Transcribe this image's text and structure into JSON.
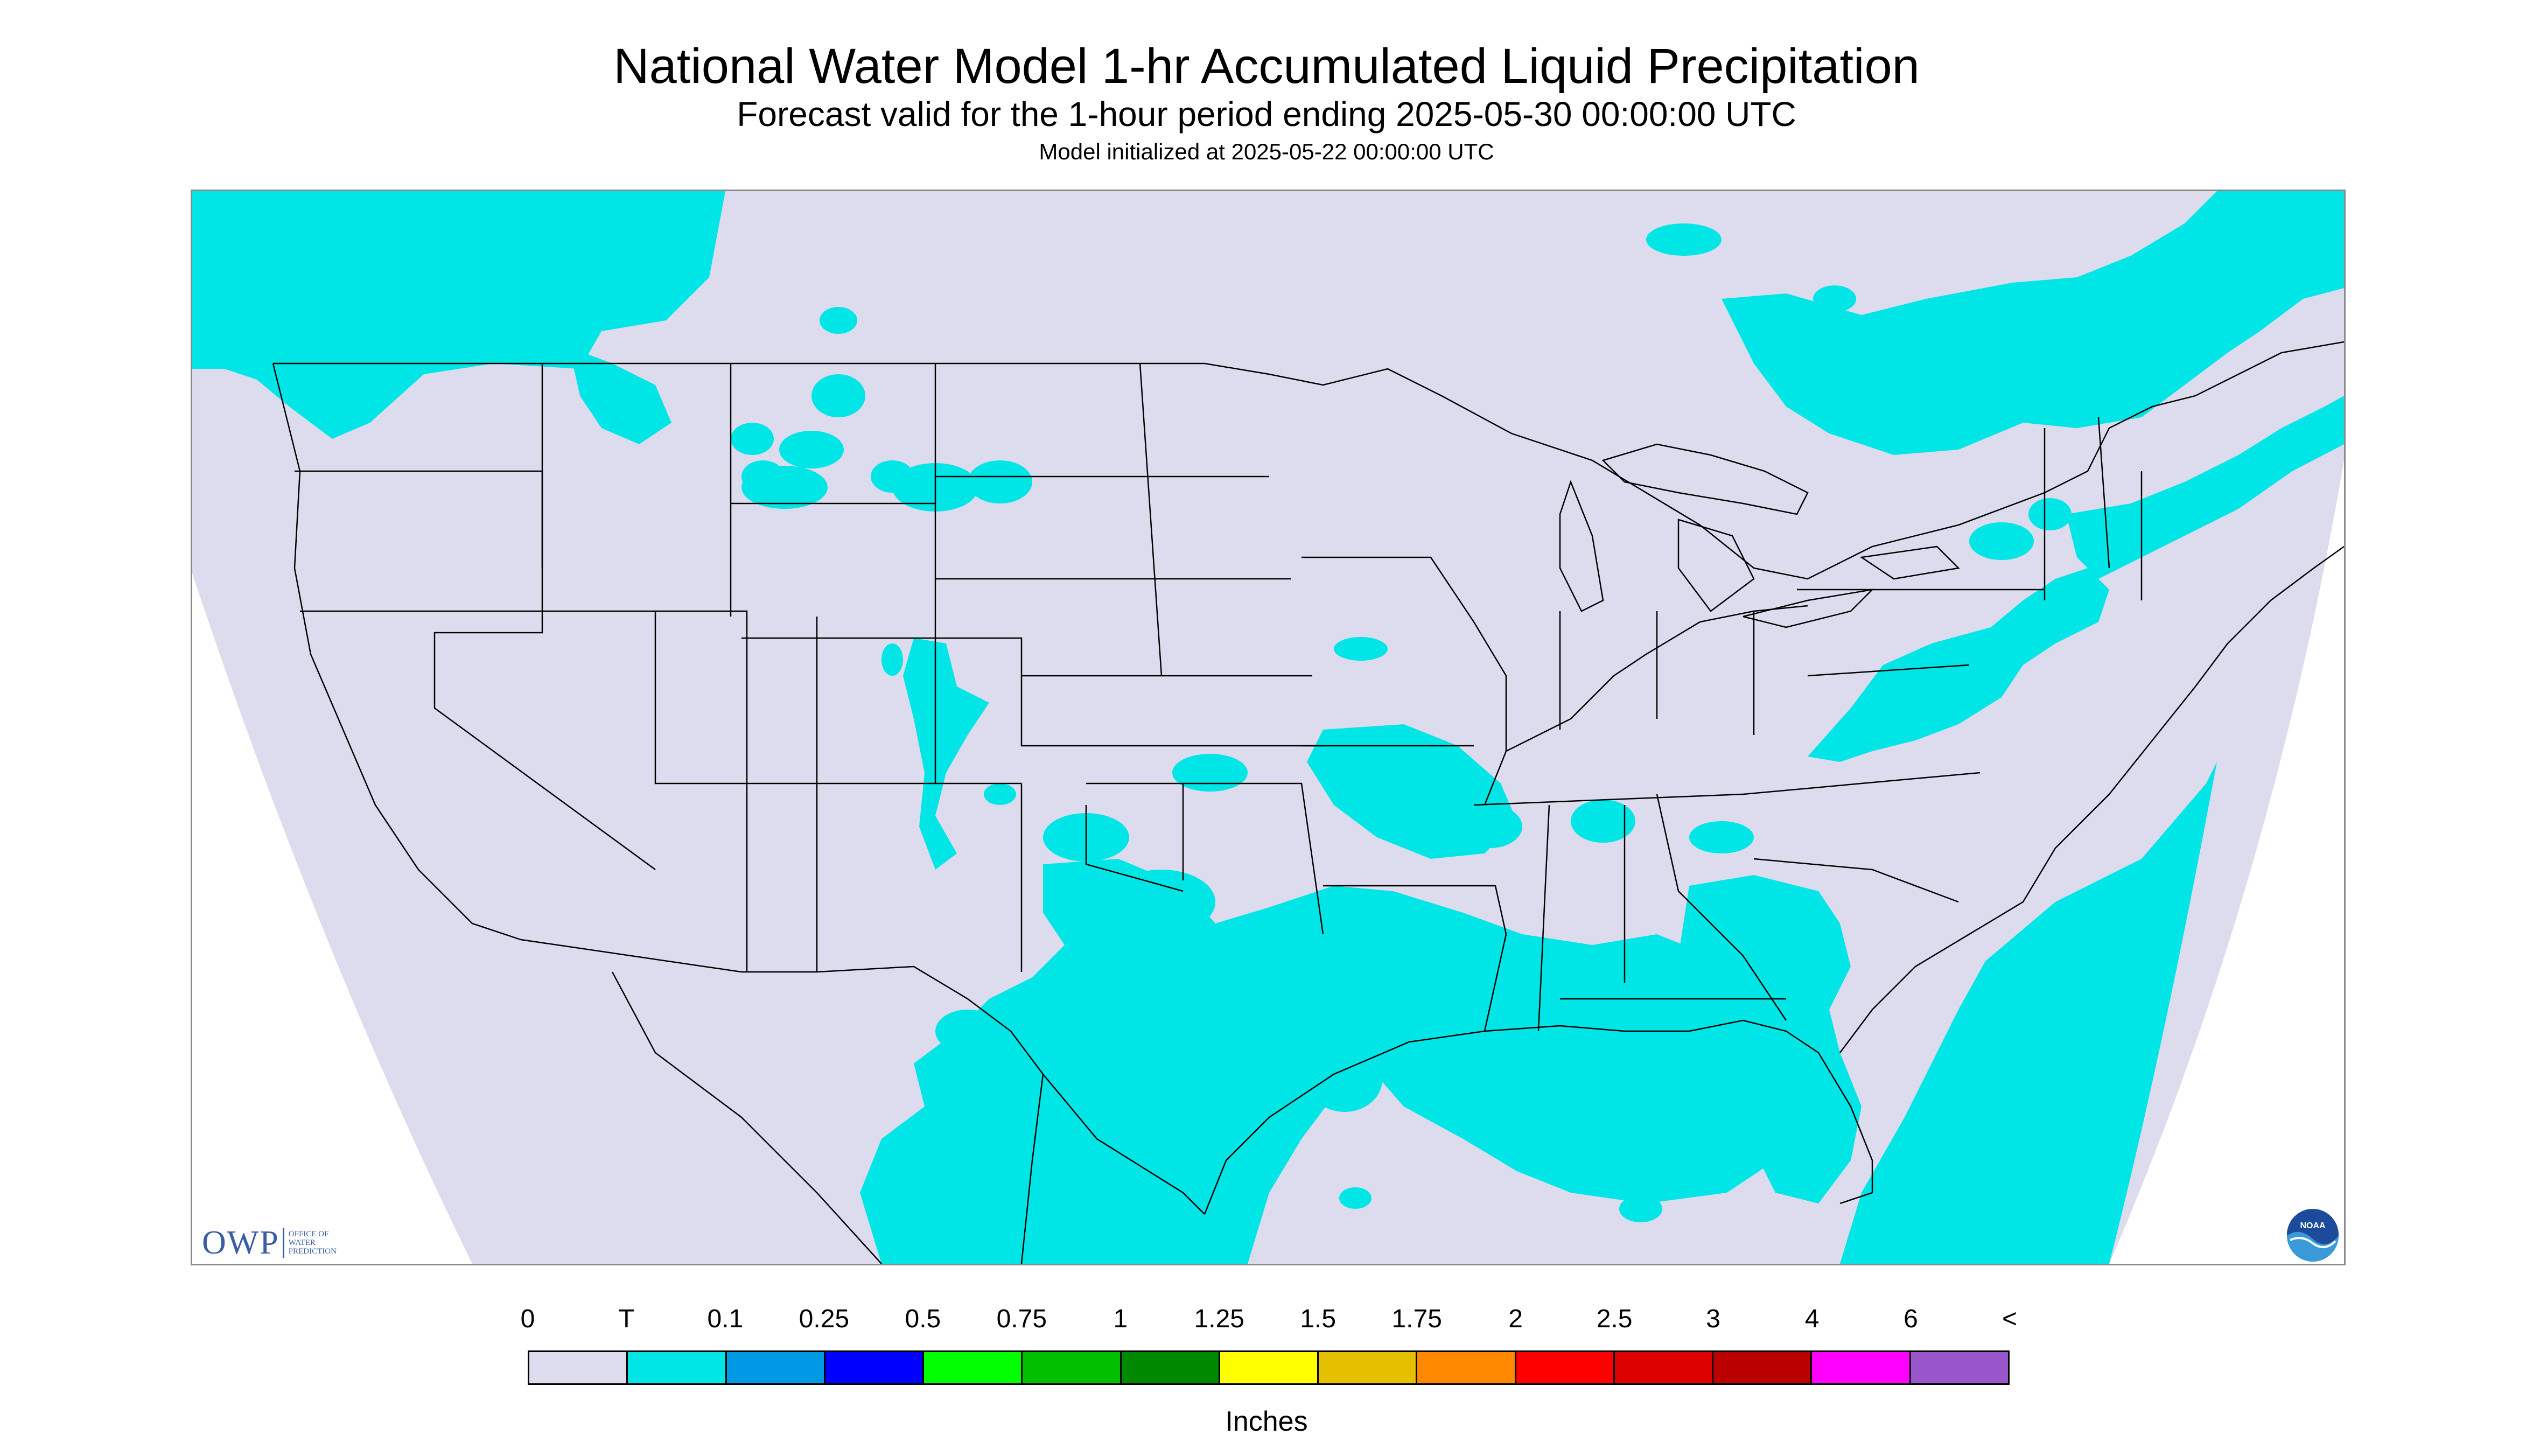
{
  "header": {
    "title": "National Water Model 1-hr Accumulated Liquid Precipitation",
    "subtitle": "Forecast valid for the 1-hour period ending 2025-05-30 00:00:00 UTC",
    "init": "Model initialized at 2025-05-22 00:00:00 UTC"
  },
  "logos": {
    "owp_mark": "OWP",
    "owp_line1": "Office of",
    "owp_line2": "Water",
    "owp_line3": "Prediction",
    "noaa": "NOAA"
  },
  "legend": {
    "labels": [
      "0",
      "T",
      "0.1",
      "0.25",
      "0.5",
      "0.75",
      "1",
      "1.25",
      "1.5",
      "1.75",
      "2",
      "2.5",
      "3",
      "4",
      "6",
      "<"
    ],
    "colors": [
      "#dcdcee",
      "#00e5e5",
      "#0099e5",
      "#0000ff",
      "#00ff00",
      "#00c000",
      "#008800",
      "#ffff00",
      "#e5c000",
      "#ff8800",
      "#ff0000",
      "#dd0000",
      "#bb0000",
      "#ff00ff",
      "#9955cc"
    ],
    "units": "Inches"
  },
  "map": {
    "background_color": "#dcdcee",
    "precip_color": "#00e5e5",
    "outside_color": "#ffffff",
    "border_color": "#000000"
  }
}
